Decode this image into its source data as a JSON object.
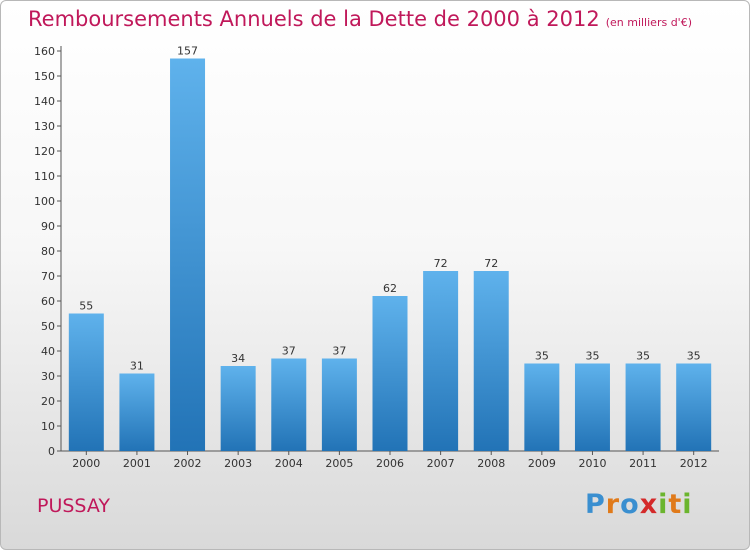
{
  "title": "Remboursements Annuels de la Dette de 2000 à 2012",
  "unit_label": "(en milliers d'€)",
  "commune": "PUSSAY",
  "logo": {
    "letters": [
      "P",
      "r",
      "o",
      "x",
      "i",
      "t",
      "i"
    ],
    "colors": [
      "#3a8fd0",
      "#e07a1a",
      "#3a8fd0",
      "#d42a2a",
      "#6bb52e",
      "#e07a1a",
      "#6bb52e"
    ]
  },
  "chart_data": {
    "type": "bar",
    "title": "Remboursements Annuels de la Dette de 2000 à 2012",
    "xlabel": "",
    "ylabel": "",
    "categories": [
      "2000",
      "2001",
      "2002",
      "2003",
      "2004",
      "2005",
      "2006",
      "2007",
      "2008",
      "2009",
      "2010",
      "2011",
      "2012"
    ],
    "values": [
      55,
      31,
      157,
      34,
      37,
      37,
      62,
      72,
      72,
      35,
      35,
      35,
      35
    ],
    "ylim": [
      0,
      160
    ],
    "yticks": [
      0,
      10,
      20,
      30,
      40,
      50,
      60,
      70,
      80,
      90,
      100,
      110,
      120,
      130,
      140,
      150,
      160
    ],
    "grid": false,
    "data_labels": true,
    "bar_color": "#3d9be0"
  }
}
